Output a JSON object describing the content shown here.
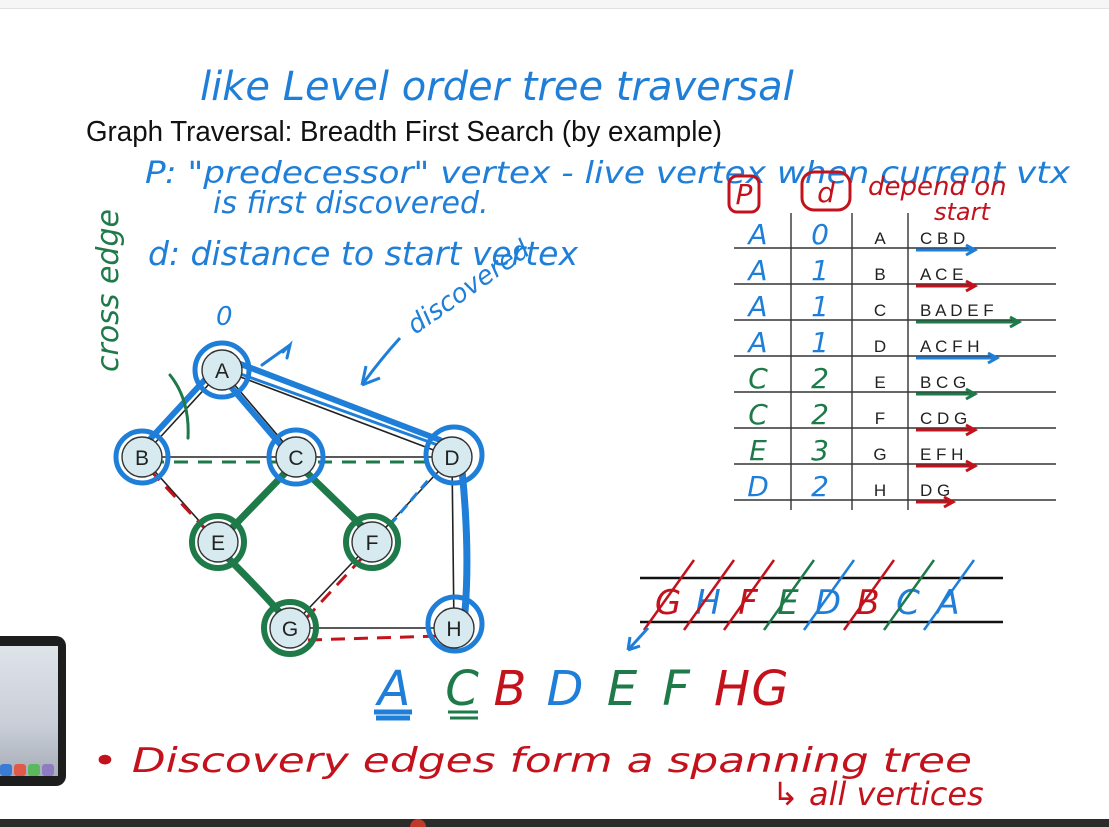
{
  "title": "Graph Traversal: Breadth First Search (by example)",
  "notes": {
    "level_order": "like Level order tree traversal",
    "pred_line1": "P: \"predecessor\" vertex - live vertex when current vtx",
    "pred_line2": "is first discovered.",
    "distance_line": "d: distance to start vertex",
    "cross_edge": "cross edge",
    "discovered": "discovered",
    "zero": "0",
    "depend": "depend on",
    "start": "start",
    "p_head": "P",
    "d_head": "d",
    "order": [
      "A",
      "C",
      "B",
      "D",
      "E",
      "F",
      "H",
      "G"
    ],
    "spanning": "• Discovery edges form a spanning tree",
    "all_vertices": "↳ all vertices"
  },
  "graph": {
    "vertices": [
      "A",
      "B",
      "C",
      "D",
      "E",
      "F",
      "G",
      "H"
    ]
  },
  "table": {
    "rows": [
      {
        "p": "A",
        "d": "0",
        "vertex": "A",
        "adj": "C B D"
      },
      {
        "p": "A",
        "d": "1",
        "vertex": "B",
        "adj": "A C E"
      },
      {
        "p": "A",
        "d": "1",
        "vertex": "C",
        "adj": "B A D E F"
      },
      {
        "p": "A",
        "d": "1",
        "vertex": "D",
        "adj": "A C F H"
      },
      {
        "p": "C",
        "d": "2",
        "vertex": "E",
        "adj": "B C G"
      },
      {
        "p": "C",
        "d": "2",
        "vertex": "F",
        "adj": "C D G"
      },
      {
        "p": "E",
        "d": "3",
        "vertex": "G",
        "adj": "E F H"
      },
      {
        "p": "D",
        "d": "2",
        "vertex": "H",
        "adj": "D G"
      }
    ]
  },
  "queue": {
    "items": [
      "G",
      "H",
      "F",
      "E",
      "D",
      "B",
      "C",
      "A"
    ]
  },
  "colors": {
    "blue": "#1f7fd8",
    "green": "#1f7a4a",
    "red": "#c4121c",
    "node_fill": "#d6eaf0",
    "ink": "#222222"
  }
}
